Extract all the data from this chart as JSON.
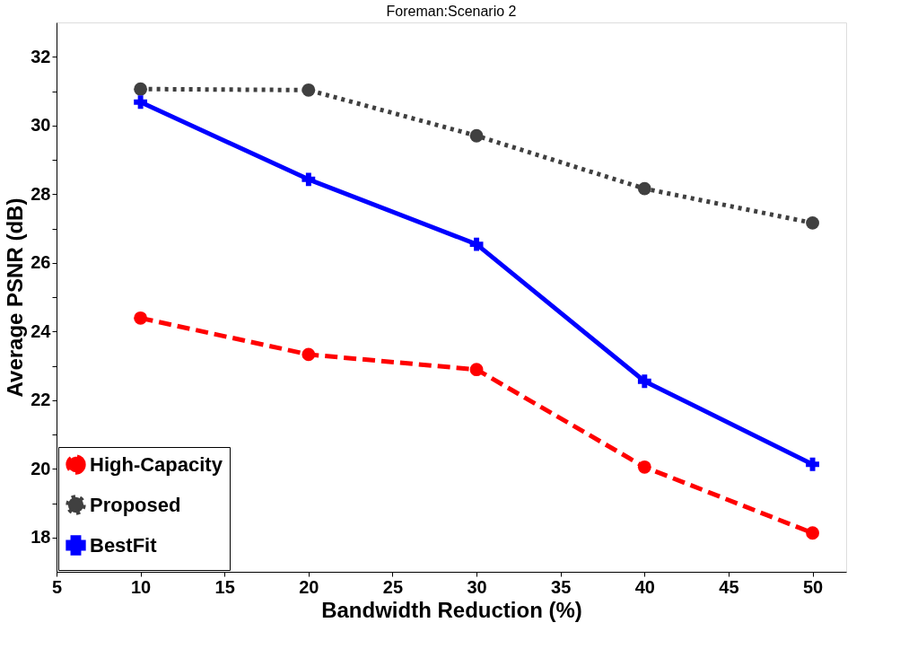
{
  "chart_data": {
    "type": "line",
    "title": "Foreman:Scenario 2",
    "xlabel": "Bandwidth Reduction (%)",
    "ylabel": "Average PSNR (dB)",
    "x": [
      10,
      20,
      30,
      40,
      50
    ],
    "series": [
      {
        "name": "High-Capacity",
        "color": "#ff0000",
        "values": [
          24.39,
          23.33,
          22.89,
          20.05,
          18.13
        ],
        "line_style": "dashed",
        "marker": "circle"
      },
      {
        "name": "Proposed",
        "color": "#404040",
        "values": [
          31.06,
          31.03,
          29.7,
          28.16,
          27.16
        ],
        "line_style": "dotted",
        "marker": "circle"
      },
      {
        "name": "BestFit",
        "color": "#0000ff",
        "values": [
          30.68,
          28.43,
          26.54,
          22.55,
          20.13
        ],
        "line_style": "solid",
        "marker": "cross"
      }
    ],
    "xlim": [
      5,
      52
    ],
    "ylim": [
      17,
      33
    ],
    "xticks": [
      5,
      10,
      15,
      20,
      25,
      30,
      35,
      40,
      45,
      50
    ],
    "yticks": [
      18,
      {
        "value": 19,
        "label": null
      },
      20,
      {
        "value": 21,
        "label": null
      },
      22,
      {
        "value": 23,
        "label": null
      },
      24,
      {
        "value": 25,
        "label": null
      },
      26,
      {
        "value": 27,
        "label": null
      },
      28,
      {
        "value": 29,
        "label": null
      },
      30,
      {
        "value": 31,
        "label": null
      },
      32
    ],
    "grid": false,
    "legend": "bottom left"
  }
}
